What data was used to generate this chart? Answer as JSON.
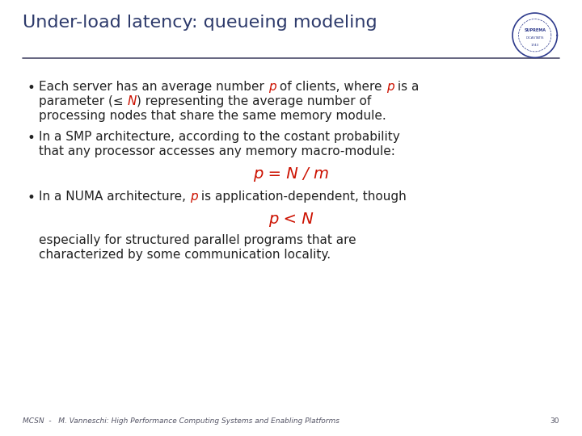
{
  "title": "Under-load latency: queueing modeling",
  "title_color": "#2d3a6b",
  "title_fontsize": 16,
  "bg_color": "#ffffff",
  "separator_color": "#4a4a6a",
  "bullet_color": "#222222",
  "red_color": "#cc1100",
  "body_fontsize": 11,
  "formula_fontsize": 14,
  "footer_fontsize": 6.5,
  "footer_text": "MCSN  -   M. Vanneschi: High Performance Computing Systems and Enabling Platforms",
  "page_number": "30"
}
